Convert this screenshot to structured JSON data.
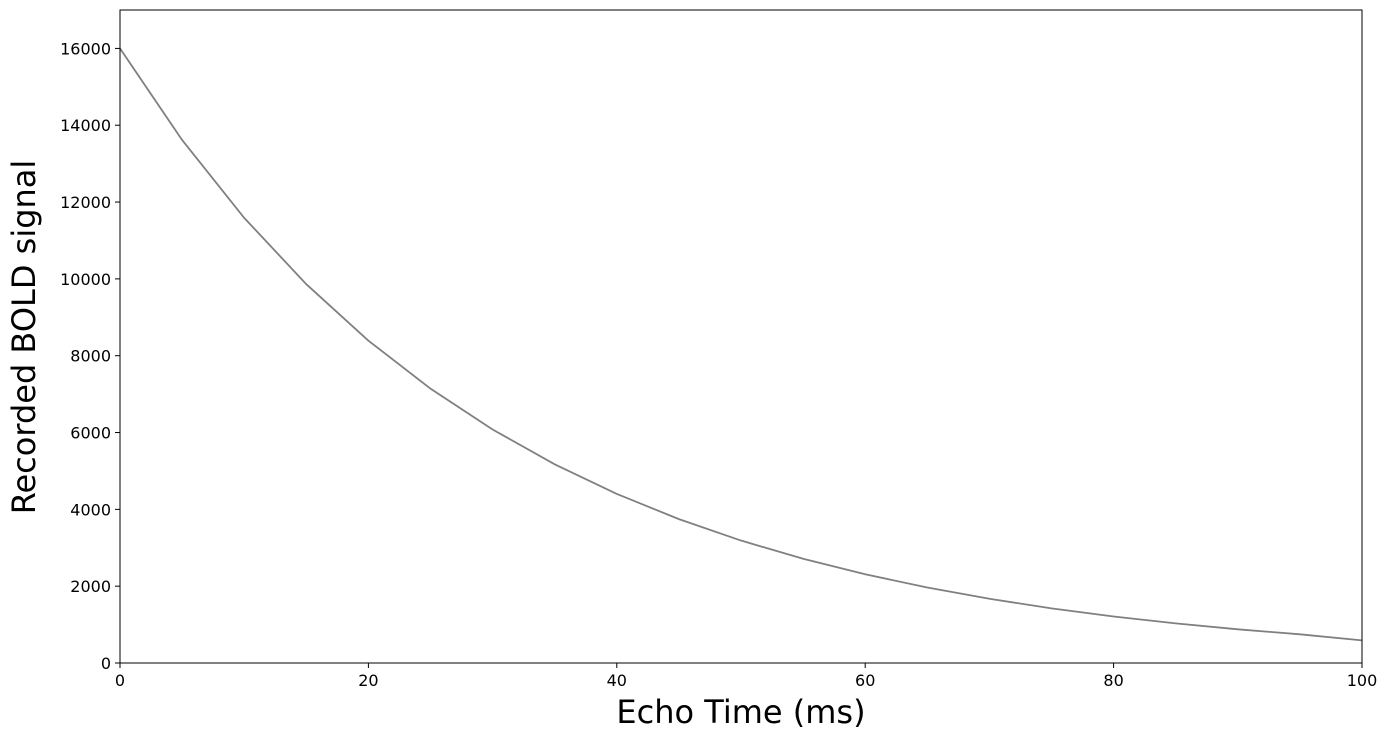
{
  "chart_data": {
    "type": "line",
    "title": "",
    "xlabel": "Echo Time (ms)",
    "ylabel": "Recorded BOLD signal",
    "xlim": [
      0,
      100
    ],
    "ylim": [
      0,
      17000
    ],
    "x_ticks": [
      0,
      20,
      40,
      60,
      80,
      100
    ],
    "x_tick_labels": [
      "0",
      "20",
      "40",
      "60",
      "80",
      "100"
    ],
    "y_ticks": [
      0,
      2000,
      4000,
      6000,
      8000,
      10000,
      12000,
      14000,
      16000
    ],
    "y_tick_labels": [
      "0",
      "2000",
      "4000",
      "6000",
      "8000",
      "10000",
      "12000",
      "14000",
      "16000"
    ],
    "grid": false,
    "line_color": "#808080",
    "series": [
      {
        "x": [
          0,
          5,
          10,
          15,
          20,
          25,
          30,
          35,
          40,
          45,
          50,
          55,
          60,
          65,
          70,
          75,
          80,
          85,
          90,
          95,
          100
        ],
        "y": [
          16000,
          13616,
          11588,
          9861,
          8392,
          7142,
          6078,
          5173,
          4402,
          3746,
          3188,
          2713,
          2309,
          1965,
          1672,
          1423,
          1211,
          1031,
          877,
          747,
          590
        ]
      }
    ]
  }
}
